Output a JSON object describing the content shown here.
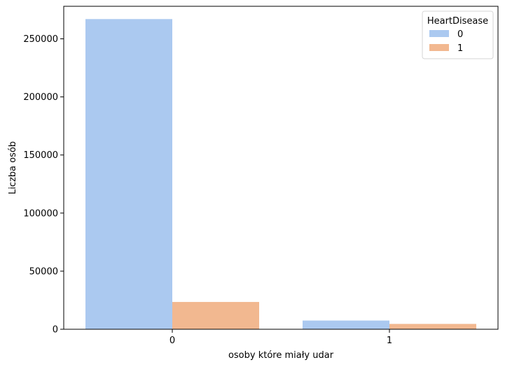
{
  "chart_data": {
    "type": "bar",
    "xlabel": "osoby które miały udar",
    "ylabel": "Liczba osób",
    "categories": [
      "0",
      "1"
    ],
    "series": [
      {
        "name": "0",
        "values": [
          267000,
          7500
        ],
        "color": "#abc9f0"
      },
      {
        "name": "1",
        "values": [
          23500,
          4600
        ],
        "color": "#f2b890"
      }
    ],
    "ylim": [
      0,
      278000
    ],
    "yticks": [
      0,
      50000,
      100000,
      150000,
      200000,
      250000
    ],
    "legend": {
      "title": "HeartDisease",
      "placement": "top-right"
    },
    "grid": false
  }
}
